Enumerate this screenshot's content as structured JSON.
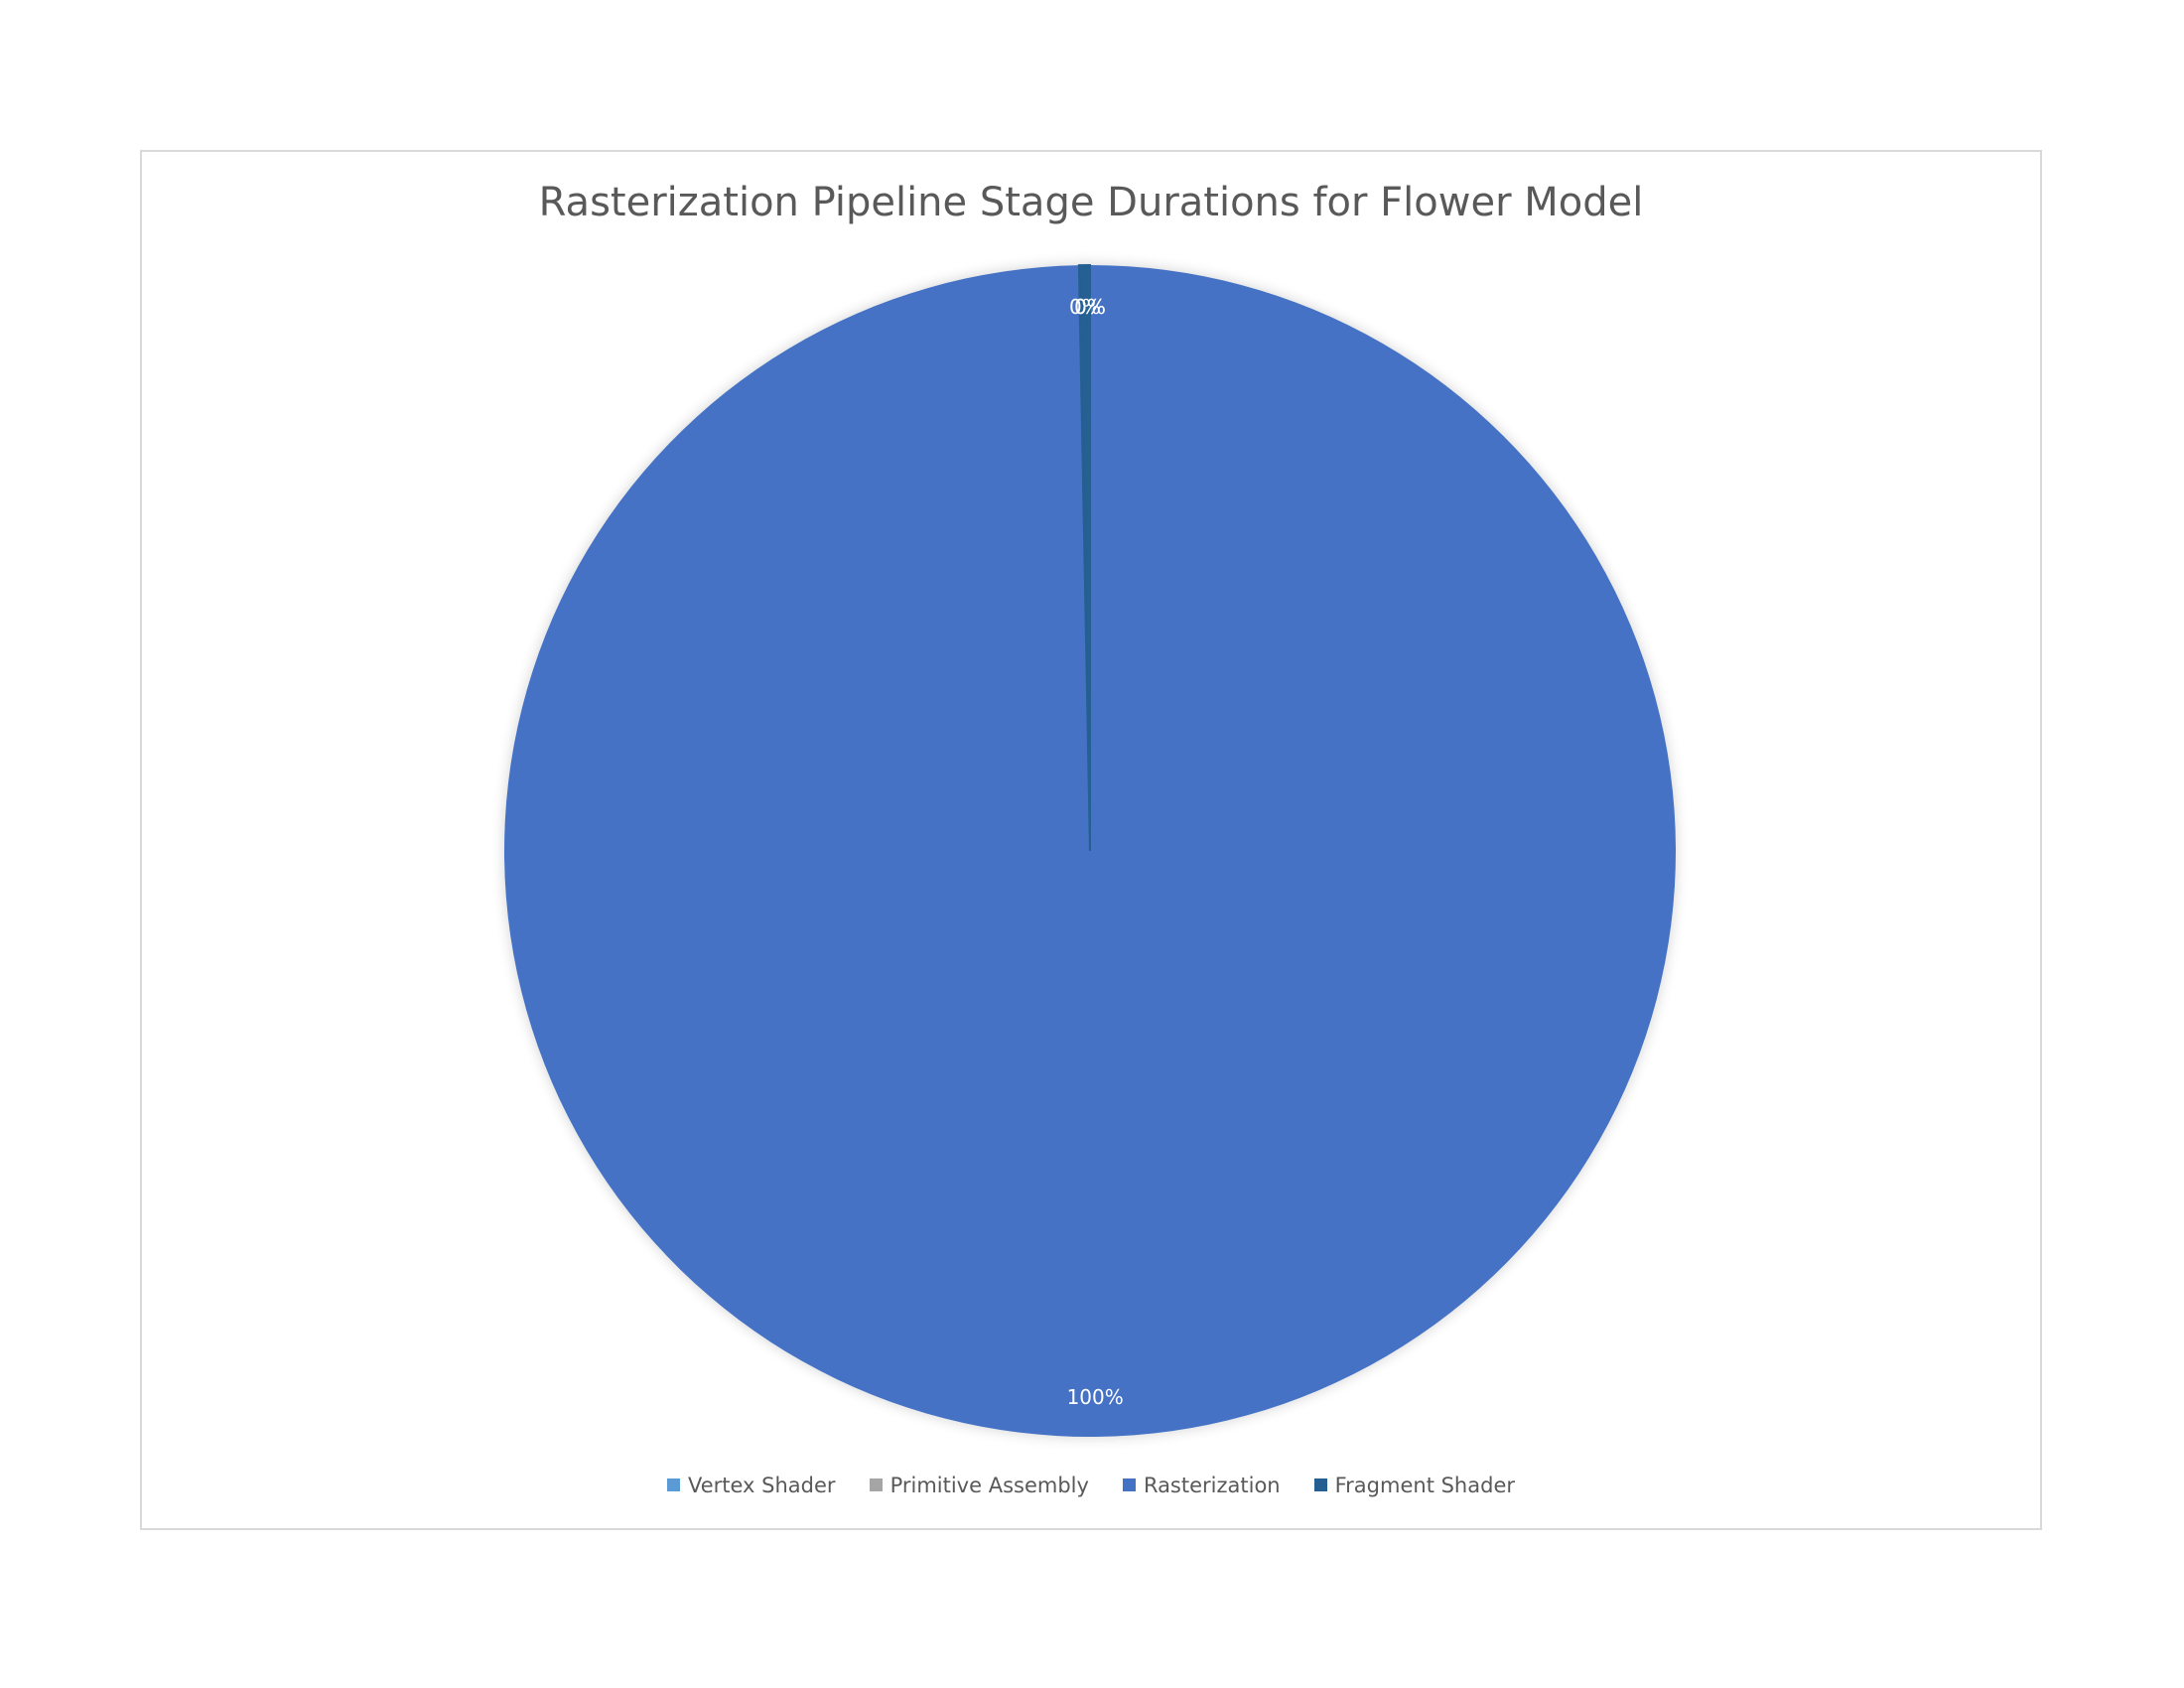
{
  "chart_data": {
    "type": "pie",
    "title": "Rasterization Pipeline Stage Durations for Flower Model",
    "categories": [
      "Vertex Shader",
      "Primitive Assembly",
      "Rasterization",
      "Fragment Shader"
    ],
    "values": [
      0.0005,
      0.0001,
      99.7,
      0.3
    ],
    "data_labels": [
      "0%",
      "0%",
      "100%",
      "0%"
    ],
    "colors": [
      "#5b9bd5",
      "#a5a5a5",
      "#4472c4",
      "#255e91"
    ],
    "legend_position": "bottom"
  }
}
